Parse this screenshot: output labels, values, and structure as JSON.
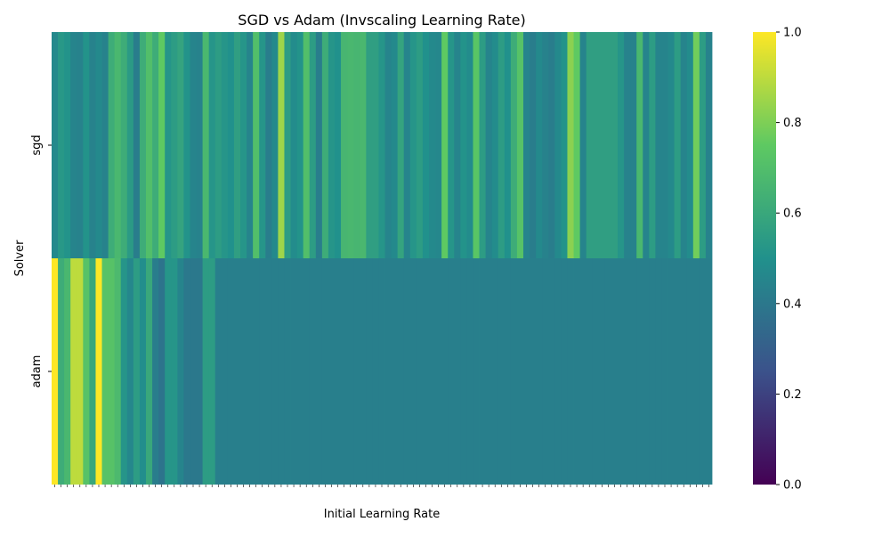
{
  "chart_data": {
    "type": "heatmap",
    "title": "SGD vs Adam (Invscaling Learning Rate)",
    "xlabel": "Initial Learning Rate",
    "ylabel": "Solver",
    "rows": [
      "sgd",
      "adam"
    ],
    "colorbar": {
      "min": 0.0,
      "max": 1.0,
      "ticks": [
        "0.0",
        "0.2",
        "0.4",
        "0.6",
        "0.8",
        "1.0"
      ],
      "colormap": "viridis"
    },
    "values": [
      [
        0.47,
        0.53,
        0.51,
        0.45,
        0.44,
        0.51,
        0.44,
        0.47,
        0.44,
        0.62,
        0.67,
        0.62,
        0.54,
        0.42,
        0.62,
        0.7,
        0.62,
        0.75,
        0.52,
        0.55,
        0.58,
        0.51,
        0.45,
        0.44,
        0.67,
        0.52,
        0.55,
        0.52,
        0.5,
        0.56,
        0.52,
        0.45,
        0.7,
        0.52,
        0.42,
        0.47,
        0.85,
        0.55,
        0.48,
        0.51,
        0.7,
        0.55,
        0.42,
        0.62,
        0.52,
        0.5,
        0.66,
        0.67,
        0.66,
        0.67,
        0.56,
        0.56,
        0.52,
        0.45,
        0.47,
        0.58,
        0.45,
        0.52,
        0.55,
        0.5,
        0.47,
        0.46,
        0.75,
        0.52,
        0.45,
        0.51,
        0.48,
        0.73,
        0.55,
        0.45,
        0.48,
        0.55,
        0.5,
        0.62,
        0.72,
        0.45,
        0.42,
        0.47,
        0.44,
        0.42,
        0.47,
        0.51,
        0.82,
        0.75,
        0.45,
        0.56,
        0.56,
        0.56,
        0.56,
        0.56,
        0.52,
        0.44,
        0.44,
        0.67,
        0.45,
        0.55,
        0.45,
        0.45,
        0.47,
        0.55,
        0.45,
        0.48,
        0.78,
        0.55,
        0.44
      ],
      [
        1.0,
        0.62,
        0.67,
        0.9,
        0.9,
        0.72,
        0.6,
        1.0,
        0.72,
        0.72,
        0.68,
        0.52,
        0.46,
        0.55,
        0.49,
        0.6,
        0.42,
        0.38,
        0.52,
        0.52,
        0.45,
        0.4,
        0.4,
        0.4,
        0.55,
        0.55,
        0.43,
        0.43,
        0.43,
        0.43,
        0.43,
        0.43,
        0.43,
        0.43,
        0.43,
        0.43,
        0.43,
        0.43,
        0.43,
        0.43,
        0.43,
        0.43,
        0.43,
        0.43,
        0.43,
        0.43,
        0.43,
        0.43,
        0.43,
        0.43,
        0.43,
        0.43,
        0.43,
        0.43,
        0.43,
        0.43,
        0.43,
        0.43,
        0.43,
        0.43,
        0.43,
        0.43,
        0.43,
        0.43,
        0.43,
        0.43,
        0.43,
        0.43,
        0.43,
        0.43,
        0.43,
        0.43,
        0.43,
        0.43,
        0.43,
        0.43,
        0.43,
        0.43,
        0.43,
        0.43,
        0.43,
        0.43,
        0.43,
        0.43,
        0.43,
        0.43,
        0.43,
        0.43,
        0.43,
        0.43,
        0.43,
        0.43,
        0.43,
        0.43,
        0.43,
        0.43,
        0.43,
        0.43,
        0.43,
        0.43,
        0.43,
        0.43,
        0.43,
        0.43,
        0.43
      ]
    ]
  }
}
